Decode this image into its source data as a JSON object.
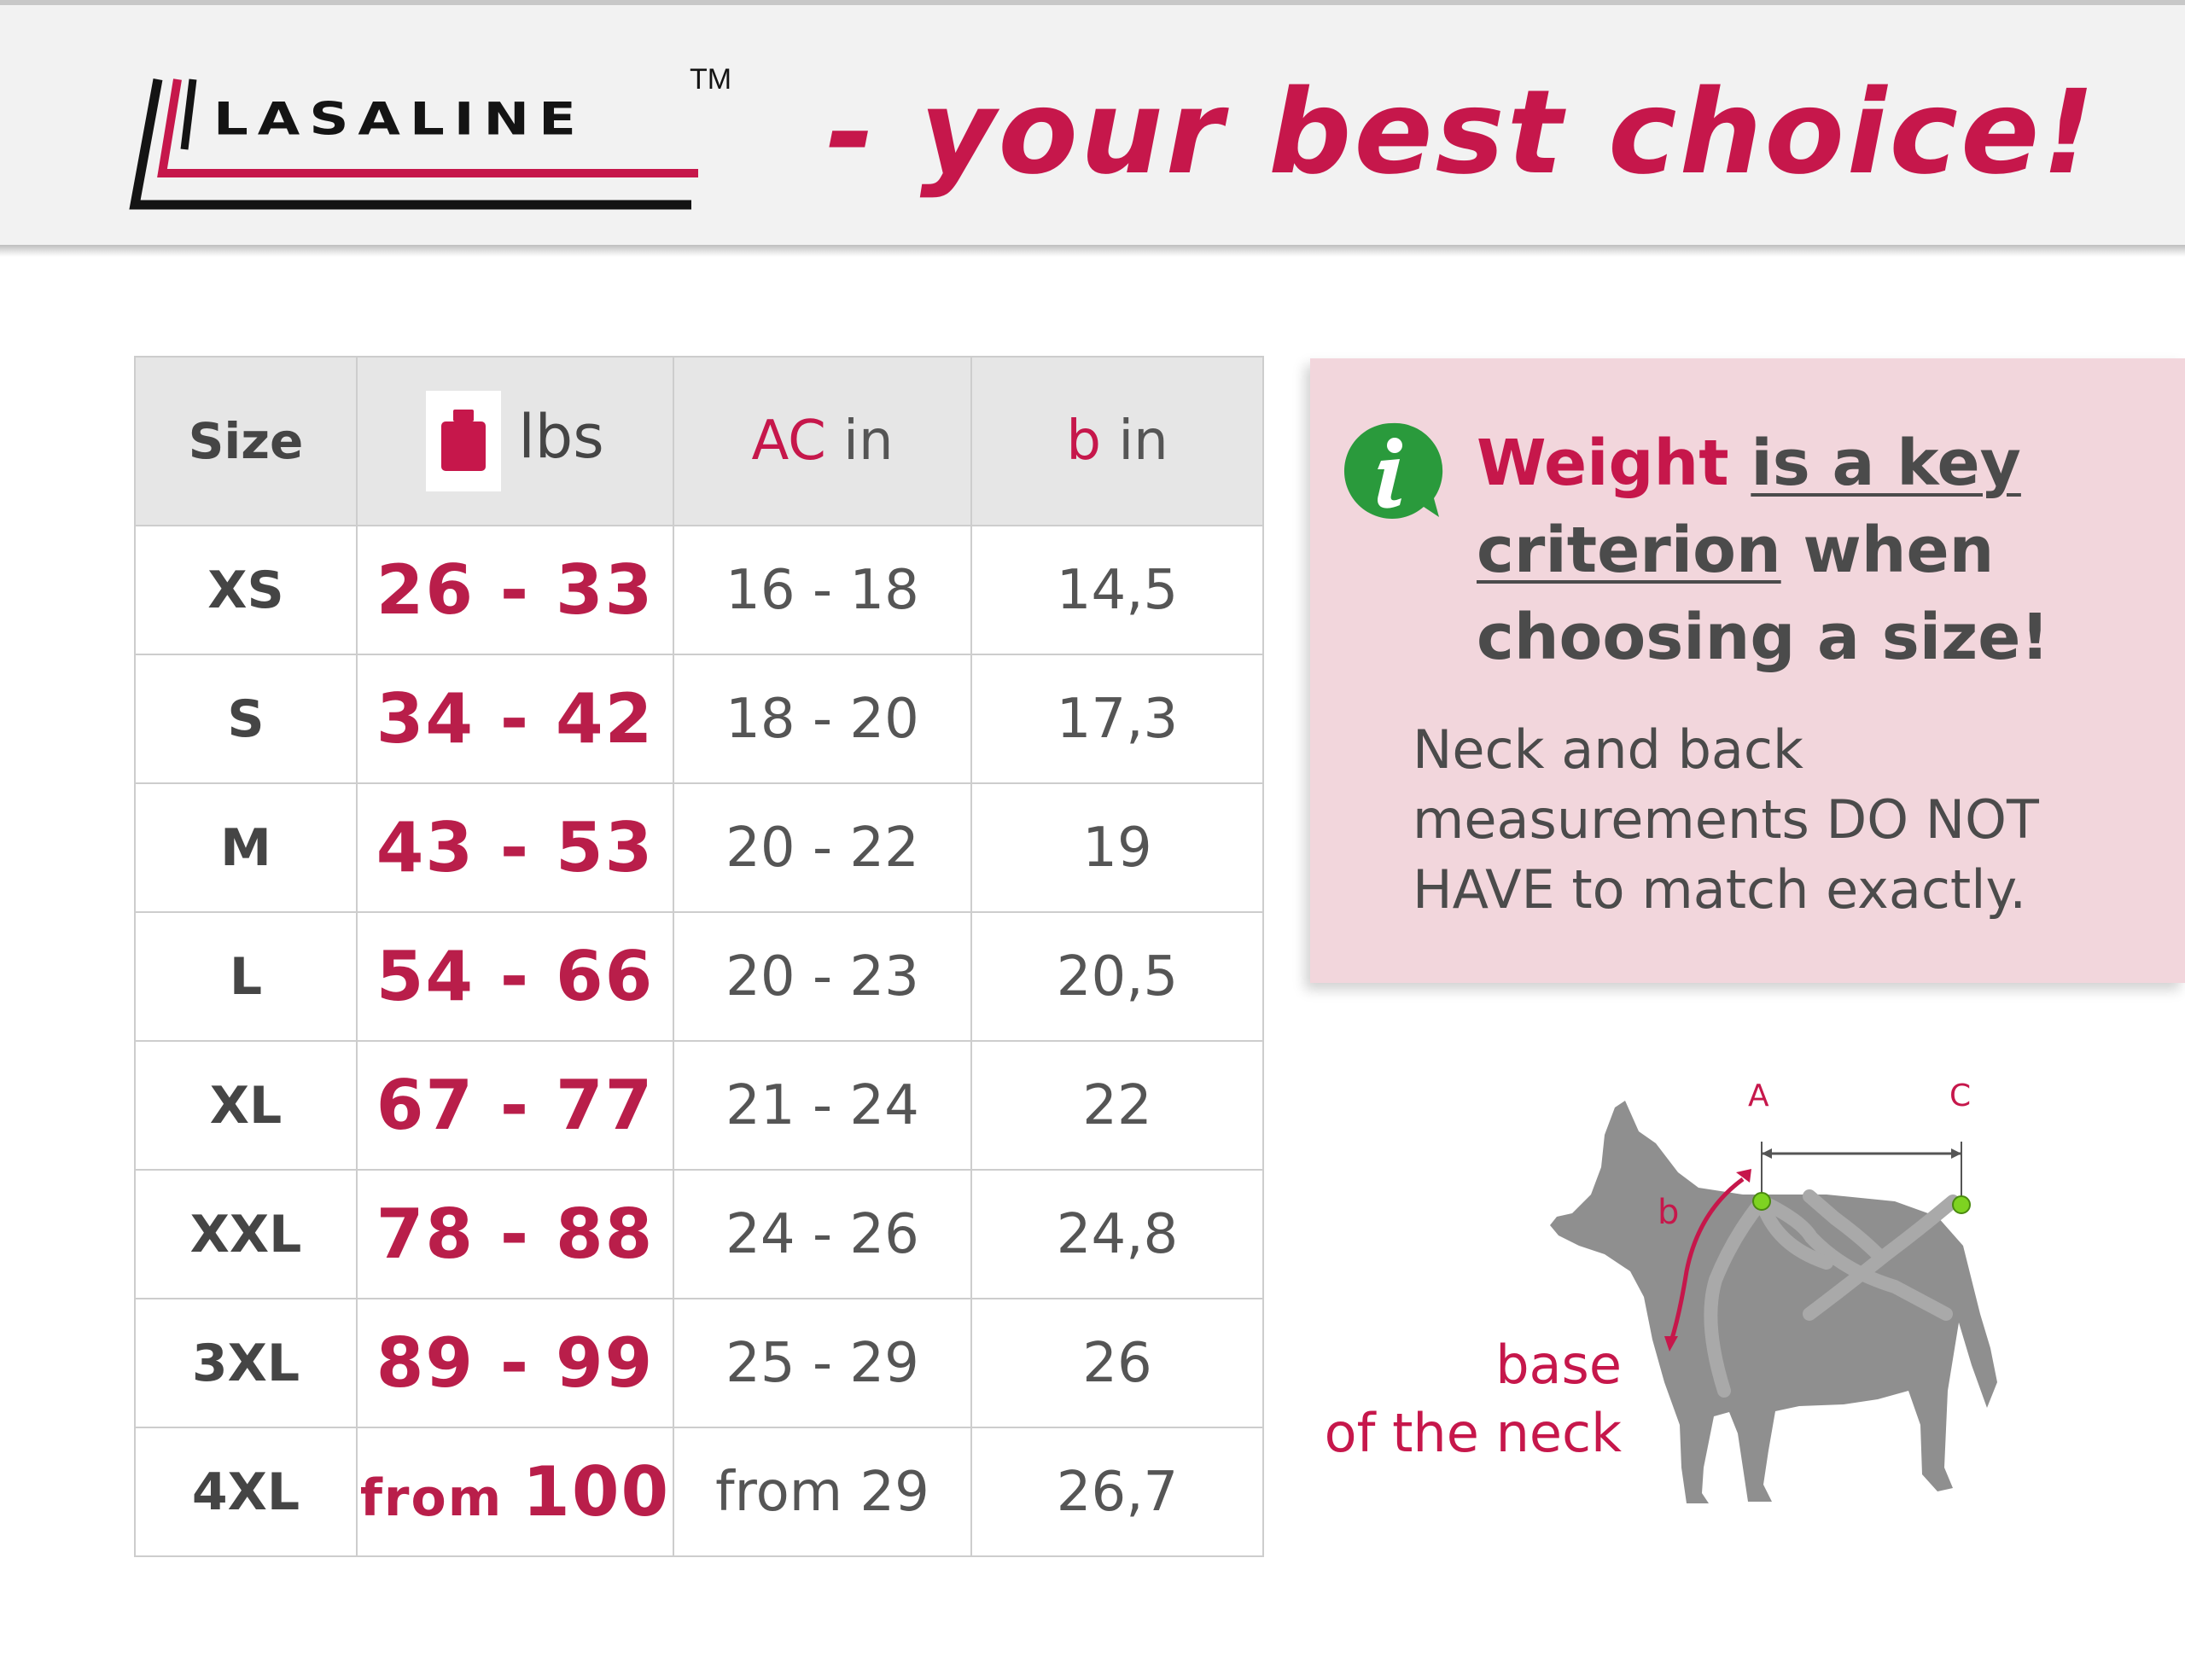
{
  "header": {
    "logo_text": "LASALINE",
    "logo_tm": "TM",
    "tagline": "- your best choice!"
  },
  "colors": {
    "brand_red": "#c6174b",
    "info_panel": "#f2d6dc",
    "info_icon_green": "#2a9a3c",
    "dog_gray": "#8f8f8f",
    "point_green": "#7ed321"
  },
  "table": {
    "headers": {
      "size": "Size",
      "lbs_unit": "lbs",
      "lbs_icon": "weight-icon",
      "ac_letter": "AC",
      "ac_unit": " in",
      "b_letter": "b",
      "b_unit": " in"
    },
    "rows": [
      {
        "size": "XS",
        "lbs": "26 - 33",
        "ac": "16 - 18",
        "b": "14,5"
      },
      {
        "size": "S",
        "lbs": "34 - 42",
        "ac": "18 - 20",
        "b": "17,3"
      },
      {
        "size": "M",
        "lbs": "43 - 53",
        "ac": "20 - 22",
        "b": "19"
      },
      {
        "size": "L",
        "lbs": "54 - 66",
        "ac": "20 - 23",
        "b": "20,5"
      },
      {
        "size": "XL",
        "lbs": "67 - 77",
        "ac": "21 - 24",
        "b": "22"
      },
      {
        "size": "XXL",
        "lbs": "78 - 88",
        "ac": "24 - 26",
        "b": "24,8"
      },
      {
        "size": "3XL",
        "lbs": "89 - 99",
        "ac": "25 - 29",
        "b": "26"
      },
      {
        "size": "4XL",
        "lbs_prefix": "from ",
        "lbs": "100",
        "ac": "from 29",
        "b": "26,7"
      }
    ]
  },
  "info": {
    "icon": "info-icon",
    "headline_highlight": "Weight",
    "headline_underlined_1": "is a key",
    "headline_underlined_2": "criterion",
    "headline_rest_1": " when",
    "headline_rest_2": "choosing a size!",
    "note": "Neck and back measurements DO NOT HAVE to match exactly."
  },
  "diagram": {
    "point_a": "A",
    "point_c": "C",
    "point_b": "b",
    "neck_line1": "base",
    "neck_line2": "of the neck"
  }
}
